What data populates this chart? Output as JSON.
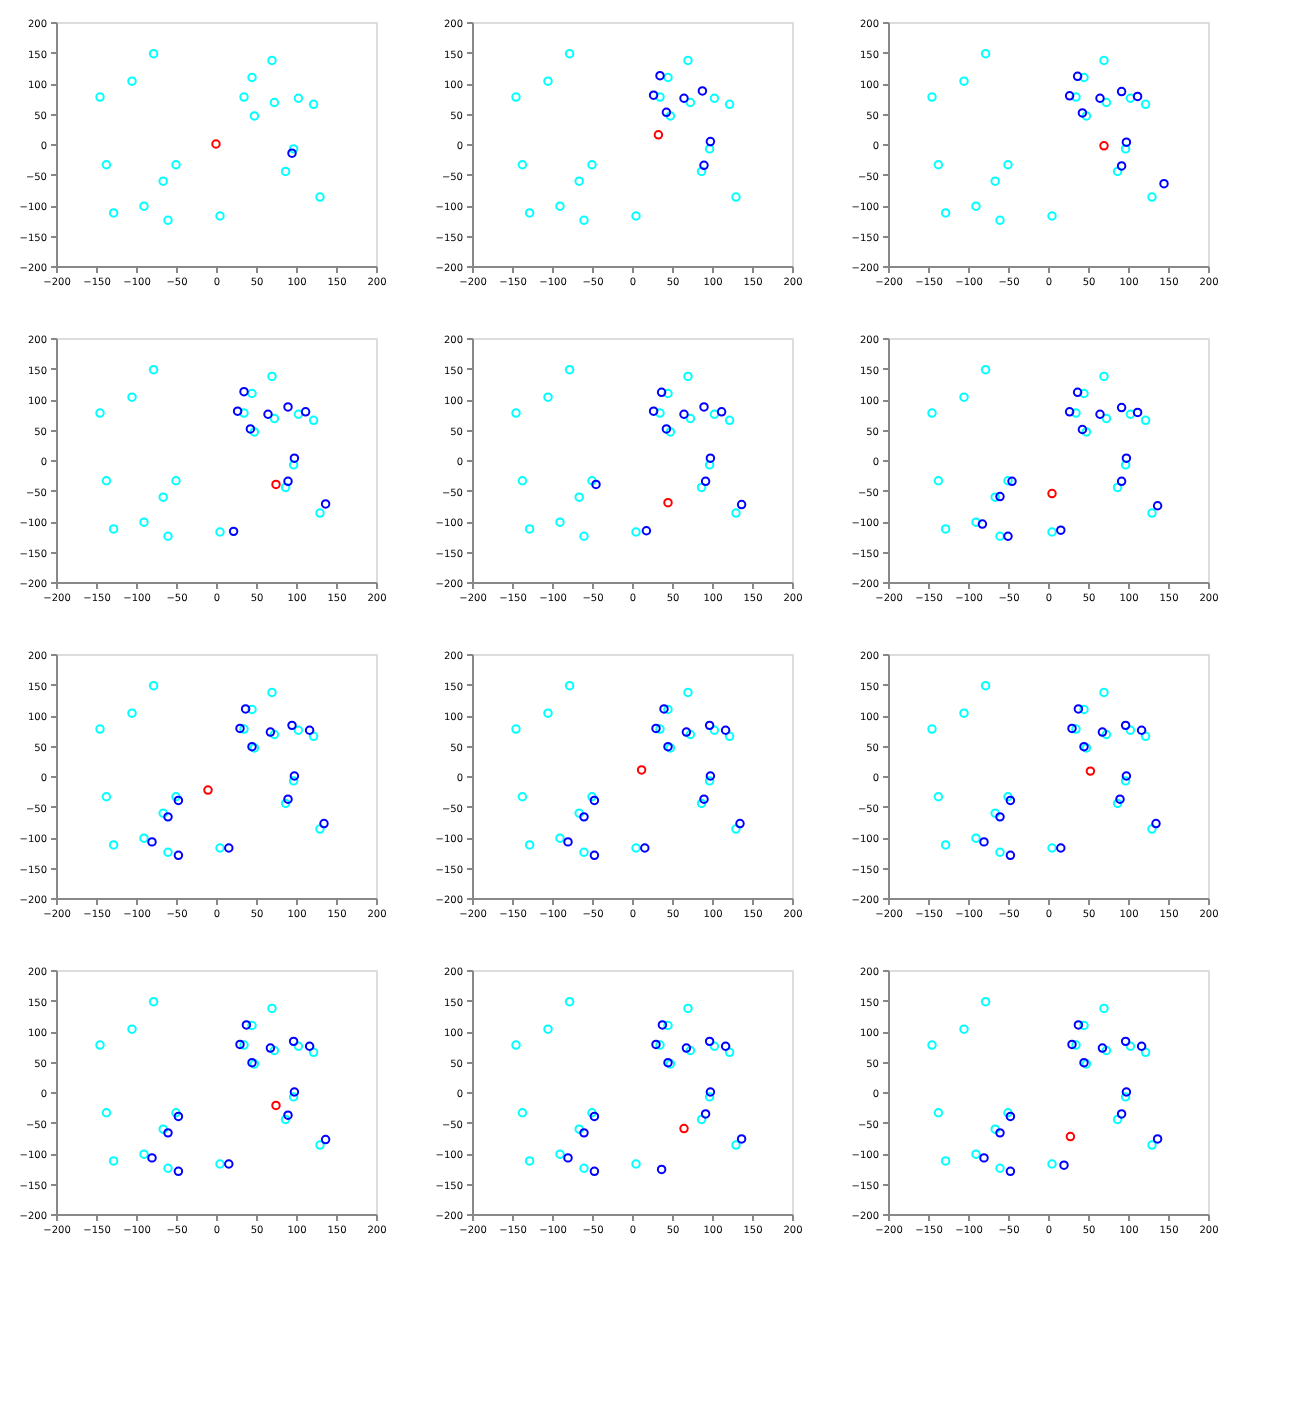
{
  "chart_data": [
    {
      "type": "scatter",
      "xlim": [
        -200,
        200
      ],
      "ylim": [
        -200,
        200
      ],
      "xticks": [
        -200,
        -150,
        -100,
        -50,
        0,
        50,
        100,
        150,
        200
      ],
      "yticks": [
        -200,
        -150,
        -100,
        -50,
        0,
        50,
        100,
        150,
        200
      ],
      "grid": false,
      "legend": false,
      "marker": "circle",
      "series": [
        {
          "color": "#00ffff",
          "x": [
            -145,
            -78,
            -105,
            -137,
            -50,
            -66,
            -128,
            -90,
            -60,
            5,
            70,
            45,
            35,
            73,
            48,
            103,
            122,
            130,
            97,
            87
          ],
          "values": [
            77,
            148,
            103,
            -34,
            -34,
            -61,
            -113,
            -102,
            -125,
            -118,
            137,
            109,
            77,
            68,
            46,
            75,
            65,
            -87,
            -8,
            -45
          ]
        },
        {
          "color": "#0000ff",
          "x": [
            95
          ],
          "values": [
            -15
          ]
        },
        {
          "color": "#ff0000",
          "x": [
            0
          ],
          "values": [
            0
          ]
        }
      ]
    },
    {
      "type": "scatter",
      "xlim": [
        -200,
        200
      ],
      "ylim": [
        -200,
        200
      ],
      "xticks": [
        -200,
        -150,
        -100,
        -50,
        0,
        50,
        100,
        150,
        200
      ],
      "yticks": [
        -200,
        -150,
        -100,
        -50,
        0,
        50,
        100,
        150,
        200
      ],
      "grid": false,
      "legend": false,
      "marker": "circle",
      "series": [
        {
          "color": "#00ffff",
          "x": [
            -145,
            -78,
            -105,
            -137,
            -50,
            -66,
            -128,
            -90,
            -60,
            5,
            70,
            45,
            35,
            73,
            48,
            103,
            122,
            130,
            97,
            87
          ],
          "values": [
            77,
            148,
            103,
            -34,
            -34,
            -61,
            -113,
            -102,
            -125,
            -118,
            137,
            109,
            77,
            68,
            46,
            75,
            65,
            -87,
            -8,
            -45
          ]
        },
        {
          "color": "#0000ff",
          "x": [
            35,
            27,
            65,
            43,
            88,
            98,
            90
          ],
          "values": [
            112,
            80,
            75,
            52,
            87,
            4,
            -35
          ]
        },
        {
          "color": "#ff0000",
          "x": [
            33
          ],
          "values": [
            15
          ]
        }
      ]
    },
    {
      "type": "scatter",
      "xlim": [
        -200,
        200
      ],
      "ylim": [
        -200,
        200
      ],
      "xticks": [
        -200,
        -150,
        -100,
        -50,
        0,
        50,
        100,
        150,
        200
      ],
      "yticks": [
        -200,
        -150,
        -100,
        -50,
        0,
        50,
        100,
        150,
        200
      ],
      "grid": false,
      "legend": false,
      "marker": "circle",
      "series": [
        {
          "color": "#00ffff",
          "x": [
            -145,
            -78,
            -105,
            -137,
            -50,
            -66,
            -128,
            -90,
            -60,
            5,
            70,
            45,
            35,
            73,
            48,
            103,
            122,
            130,
            97,
            87
          ],
          "values": [
            77,
            148,
            103,
            -34,
            -34,
            -61,
            -113,
            -102,
            -125,
            -118,
            137,
            109,
            77,
            68,
            46,
            75,
            65,
            -87,
            -8,
            -45
          ]
        },
        {
          "color": "#0000ff",
          "x": [
            37,
            27,
            65,
            43,
            92,
            112,
            98,
            92,
            145
          ],
          "values": [
            111,
            79,
            75,
            51,
            86,
            78,
            3,
            -36,
            -65
          ]
        },
        {
          "color": "#ff0000",
          "x": [
            70
          ],
          "values": [
            -3
          ]
        }
      ]
    },
    {
      "type": "scatter",
      "xlim": [
        -200,
        200
      ],
      "ylim": [
        -200,
        200
      ],
      "xticks": [
        -200,
        -150,
        -100,
        -50,
        0,
        50,
        100,
        150,
        200
      ],
      "yticks": [
        -200,
        -150,
        -100,
        -50,
        0,
        50,
        100,
        150,
        200
      ],
      "grid": false,
      "legend": false,
      "marker": "circle",
      "series": [
        {
          "color": "#00ffff",
          "x": [
            -145,
            -78,
            -105,
            -137,
            -50,
            -66,
            -128,
            -90,
            -60,
            5,
            70,
            45,
            35,
            73,
            48,
            103,
            122,
            130,
            97,
            87
          ],
          "values": [
            77,
            148,
            103,
            -34,
            -34,
            -61,
            -113,
            -102,
            -125,
            -118,
            137,
            109,
            77,
            68,
            46,
            75,
            65,
            -87,
            -8,
            -45
          ]
        },
        {
          "color": "#0000ff",
          "x": [
            35,
            27,
            65,
            43,
            90,
            112,
            98,
            90,
            137,
            22
          ],
          "values": [
            112,
            80,
            75,
            51,
            87,
            79,
            3,
            -35,
            -72,
            -117
          ]
        },
        {
          "color": "#ff0000",
          "x": [
            75
          ],
          "values": [
            -40
          ]
        }
      ]
    },
    {
      "type": "scatter",
      "xlim": [
        -200,
        200
      ],
      "ylim": [
        -200,
        200
      ],
      "xticks": [
        -200,
        -150,
        -100,
        -50,
        0,
        50,
        100,
        150,
        200
      ],
      "yticks": [
        -200,
        -150,
        -100,
        -50,
        0,
        50,
        100,
        150,
        200
      ],
      "grid": false,
      "legend": false,
      "marker": "circle",
      "series": [
        {
          "color": "#00ffff",
          "x": [
            -145,
            -78,
            -105,
            -137,
            -50,
            -66,
            -128,
            -90,
            -60,
            5,
            70,
            45,
            35,
            73,
            48,
            103,
            122,
            130,
            97,
            87
          ],
          "values": [
            77,
            148,
            103,
            -34,
            -34,
            -61,
            -113,
            -102,
            -125,
            -118,
            137,
            109,
            77,
            68,
            46,
            75,
            65,
            -87,
            -8,
            -45
          ]
        },
        {
          "color": "#0000ff",
          "x": [
            37,
            27,
            65,
            43,
            90,
            112,
            98,
            92,
            137,
            18,
            -45
          ],
          "values": [
            111,
            80,
            75,
            51,
            87,
            79,
            3,
            -35,
            -73,
            -116,
            -40
          ]
        },
        {
          "color": "#ff0000",
          "x": [
            45
          ],
          "values": [
            -70
          ]
        }
      ]
    },
    {
      "type": "scatter",
      "xlim": [
        -200,
        200
      ],
      "ylim": [
        -200,
        200
      ],
      "xticks": [
        -200,
        -150,
        -100,
        -50,
        0,
        50,
        100,
        150,
        200
      ],
      "yticks": [
        -200,
        -150,
        -100,
        -50,
        0,
        50,
        100,
        150,
        200
      ],
      "grid": false,
      "legend": false,
      "marker": "circle",
      "series": [
        {
          "color": "#00ffff",
          "x": [
            -145,
            -78,
            -105,
            -137,
            -50,
            -66,
            -128,
            -90,
            -60,
            5,
            70,
            45,
            35,
            73,
            48,
            103,
            122,
            130,
            97,
            87
          ],
          "values": [
            77,
            148,
            103,
            -34,
            -34,
            -61,
            -113,
            -102,
            -125,
            -118,
            137,
            109,
            77,
            68,
            46,
            75,
            65,
            -87,
            -8,
            -45
          ]
        },
        {
          "color": "#0000ff",
          "x": [
            37,
            27,
            65,
            43,
            92,
            112,
            98,
            92,
            137,
            16,
            -45,
            -60,
            -82,
            -50
          ],
          "values": [
            111,
            79,
            75,
            50,
            86,
            78,
            3,
            -35,
            -75,
            -115,
            -35,
            -60,
            -105,
            -125
          ]
        },
        {
          "color": "#ff0000",
          "x": [
            5
          ],
          "values": [
            -55
          ]
        }
      ]
    },
    {
      "type": "scatter",
      "xlim": [
        -200,
        200
      ],
      "ylim": [
        -200,
        200
      ],
      "xticks": [
        -200,
        -150,
        -100,
        -50,
        0,
        50,
        100,
        150,
        200
      ],
      "yticks": [
        -200,
        -150,
        -100,
        -50,
        0,
        50,
        100,
        150,
        200
      ],
      "grid": false,
      "legend": false,
      "marker": "circle",
      "series": [
        {
          "color": "#00ffff",
          "x": [
            -145,
            -78,
            -105,
            -137,
            -50,
            -66,
            -128,
            -90,
            -60,
            5,
            70,
            45,
            35,
            73,
            48,
            103,
            122,
            130,
            97,
            87
          ],
          "values": [
            77,
            148,
            103,
            -34,
            -34,
            -61,
            -113,
            -102,
            -125,
            -118,
            137,
            109,
            77,
            68,
            46,
            75,
            65,
            -87,
            -8,
            -45
          ]
        },
        {
          "color": "#0000ff",
          "x": [
            37,
            30,
            68,
            45,
            95,
            117,
            98,
            90,
            135,
            16,
            -47,
            -60,
            -80,
            -47
          ],
          "values": [
            110,
            78,
            72,
            48,
            83,
            75,
            0,
            -38,
            -78,
            -118,
            -40,
            -67,
            -108,
            -130
          ]
        },
        {
          "color": "#ff0000",
          "x": [
            -10
          ],
          "values": [
            -23
          ]
        }
      ]
    },
    {
      "type": "scatter",
      "xlim": [
        -200,
        200
      ],
      "ylim": [
        -200,
        200
      ],
      "xticks": [
        -200,
        -150,
        -100,
        -50,
        0,
        50,
        100,
        150,
        200
      ],
      "yticks": [
        -200,
        -150,
        -100,
        -50,
        0,
        50,
        100,
        150,
        200
      ],
      "grid": false,
      "legend": false,
      "marker": "circle",
      "series": [
        {
          "color": "#00ffff",
          "x": [
            -145,
            -78,
            -105,
            -137,
            -50,
            -66,
            -128,
            -90,
            -60,
            5,
            70,
            45,
            35,
            73,
            48,
            103,
            122,
            130,
            97,
            87
          ],
          "values": [
            77,
            148,
            103,
            -34,
            -34,
            -61,
            -113,
            -102,
            -125,
            -118,
            137,
            109,
            77,
            68,
            46,
            75,
            65,
            -87,
            -8,
            -45
          ]
        },
        {
          "color": "#0000ff",
          "x": [
            40,
            30,
            68,
            45,
            97,
            117,
            98,
            90,
            135,
            16,
            -47,
            -60,
            -80,
            -47
          ],
          "values": [
            110,
            78,
            72,
            48,
            83,
            75,
            0,
            -38,
            -78,
            -118,
            -40,
            -67,
            -108,
            -130
          ]
        },
        {
          "color": "#ff0000",
          "x": [
            12
          ],
          "values": [
            10
          ]
        }
      ]
    },
    {
      "type": "scatter",
      "xlim": [
        -200,
        200
      ],
      "ylim": [
        -200,
        200
      ],
      "xticks": [
        -200,
        -150,
        -100,
        -50,
        0,
        50,
        100,
        150,
        200
      ],
      "yticks": [
        -200,
        -150,
        -100,
        -50,
        0,
        50,
        100,
        150,
        200
      ],
      "grid": false,
      "legend": false,
      "marker": "circle",
      "series": [
        {
          "color": "#00ffff",
          "x": [
            -145,
            -78,
            -105,
            -137,
            -50,
            -66,
            -128,
            -90,
            -60,
            5,
            70,
            45,
            35,
            73,
            48,
            103,
            122,
            130,
            97,
            87
          ],
          "values": [
            77,
            148,
            103,
            -34,
            -34,
            -61,
            -113,
            -102,
            -125,
            -118,
            137,
            109,
            77,
            68,
            46,
            75,
            65,
            -87,
            -8,
            -45
          ]
        },
        {
          "color": "#0000ff",
          "x": [
            38,
            30,
            68,
            45,
            97,
            117,
            98,
            90,
            135,
            16,
            -47,
            -60,
            -80,
            -47
          ],
          "values": [
            110,
            78,
            72,
            48,
            83,
            75,
            0,
            -38,
            -78,
            -118,
            -40,
            -67,
            -108,
            -130
          ]
        },
        {
          "color": "#ff0000",
          "x": [
            53
          ],
          "values": [
            8
          ]
        }
      ]
    },
    {
      "type": "scatter",
      "xlim": [
        -200,
        200
      ],
      "ylim": [
        -200,
        200
      ],
      "xticks": [
        -200,
        -150,
        -100,
        -50,
        0,
        50,
        100,
        150,
        200
      ],
      "yticks": [
        -200,
        -150,
        -100,
        -50,
        0,
        50,
        100,
        150,
        200
      ],
      "grid": false,
      "legend": false,
      "marker": "circle",
      "series": [
        {
          "color": "#00ffff",
          "x": [
            -145,
            -78,
            -105,
            -137,
            -50,
            -66,
            -128,
            -90,
            -60,
            5,
            70,
            45,
            35,
            73,
            48,
            103,
            122,
            130,
            97,
            87
          ],
          "values": [
            77,
            148,
            103,
            -34,
            -34,
            -61,
            -113,
            -102,
            -125,
            -118,
            137,
            109,
            77,
            68,
            46,
            75,
            65,
            -87,
            -8,
            -45
          ]
        },
        {
          "color": "#0000ff",
          "x": [
            38,
            30,
            68,
            45,
            97,
            117,
            98,
            90,
            137,
            16,
            -47,
            -60,
            -80,
            -47
          ],
          "values": [
            110,
            78,
            72,
            48,
            83,
            75,
            0,
            -38,
            -78,
            -118,
            -40,
            -67,
            -108,
            -130
          ]
        },
        {
          "color": "#ff0000",
          "x": [
            75
          ],
          "values": [
            -22
          ]
        }
      ]
    },
    {
      "type": "scatter",
      "xlim": [
        -200,
        200
      ],
      "ylim": [
        -200,
        200
      ],
      "xticks": [
        -200,
        -150,
        -100,
        -50,
        0,
        50,
        100,
        150,
        200
      ],
      "yticks": [
        -200,
        -150,
        -100,
        -50,
        0,
        50,
        100,
        150,
        200
      ],
      "grid": false,
      "legend": false,
      "marker": "circle",
      "series": [
        {
          "color": "#00ffff",
          "x": [
            -145,
            -78,
            -105,
            -137,
            -50,
            -66,
            -128,
            -90,
            -60,
            5,
            70,
            45,
            35,
            73,
            48,
            103,
            122,
            130,
            97,
            87
          ],
          "values": [
            77,
            148,
            103,
            -34,
            -34,
            -61,
            -113,
            -102,
            -125,
            -118,
            137,
            109,
            77,
            68,
            46,
            75,
            65,
            -87,
            -8,
            -45
          ]
        },
        {
          "color": "#0000ff",
          "x": [
            38,
            30,
            68,
            45,
            97,
            117,
            98,
            92,
            137,
            37,
            -47,
            -60,
            -80,
            -47
          ],
          "values": [
            110,
            78,
            72,
            48,
            83,
            75,
            0,
            -36,
            -77,
            -127,
            -40,
            -67,
            -108,
            -130
          ]
        },
        {
          "color": "#ff0000",
          "x": [
            65
          ],
          "values": [
            -60
          ]
        }
      ]
    },
    {
      "type": "scatter",
      "xlim": [
        -200,
        200
      ],
      "ylim": [
        -200,
        200
      ],
      "xticks": [
        -200,
        -150,
        -100,
        -50,
        0,
        50,
        100,
        150,
        200
      ],
      "yticks": [
        -200,
        -150,
        -100,
        -50,
        0,
        50,
        100,
        150,
        200
      ],
      "grid": false,
      "legend": false,
      "marker": "circle",
      "series": [
        {
          "color": "#00ffff",
          "x": [
            -145,
            -78,
            -105,
            -137,
            -50,
            -66,
            -128,
            -90,
            -60,
            5,
            70,
            45,
            35,
            73,
            48,
            103,
            122,
            130,
            97,
            87
          ],
          "values": [
            77,
            148,
            103,
            -34,
            -34,
            -61,
            -113,
            -102,
            -125,
            -118,
            137,
            109,
            77,
            68,
            46,
            75,
            65,
            -87,
            -8,
            -45
          ]
        },
        {
          "color": "#0000ff",
          "x": [
            38,
            30,
            68,
            45,
            97,
            117,
            98,
            92,
            137,
            20,
            -47,
            -60,
            -80,
            -47
          ],
          "values": [
            110,
            78,
            72,
            48,
            83,
            75,
            0,
            -36,
            -77,
            -120,
            -40,
            -67,
            -108,
            -130
          ]
        },
        {
          "color": "#ff0000",
          "x": [
            28
          ],
          "values": [
            -73
          ]
        }
      ]
    }
  ]
}
